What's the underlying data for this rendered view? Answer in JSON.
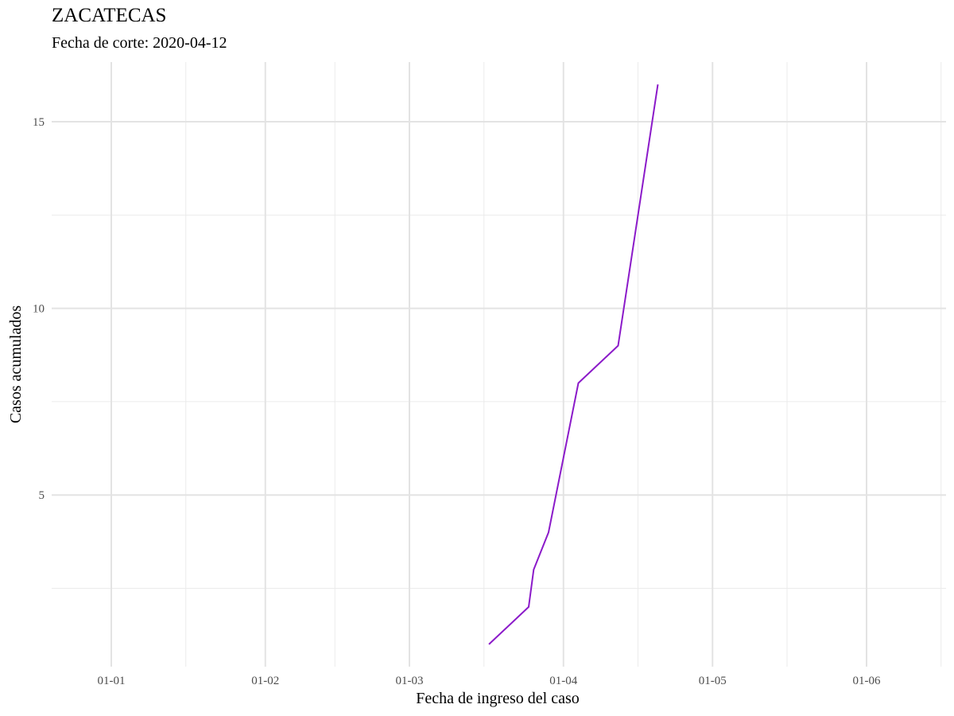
{
  "title": "ZACATECAS",
  "subtitle": "Fecha de corte: 2020-04-12",
  "chart_data": {
    "type": "line",
    "title": "ZACATECAS",
    "subtitle": "Fecha de corte: 2020-04-12",
    "xlabel": "Fecha de ingreso del caso",
    "ylabel": "Casos acumulados",
    "x_type": "date",
    "xlim": [
      "2019-12-20",
      "2020-06-17"
    ],
    "ylim": [
      0.4,
      16.6
    ],
    "x_ticks": [
      {
        "date": "2020-01-01",
        "label": "01-01"
      },
      {
        "date": "2020-02-01",
        "label": "01-02"
      },
      {
        "date": "2020-03-01",
        "label": "01-03"
      },
      {
        "date": "2020-04-01",
        "label": "01-04"
      },
      {
        "date": "2020-05-01",
        "label": "01-05"
      },
      {
        "date": "2020-06-01",
        "label": "01-06"
      }
    ],
    "x_minor_ticks": [
      "2020-01-16",
      "2020-02-15",
      "2020-03-16",
      "2020-04-16",
      "2020-05-16",
      "2020-06-16"
    ],
    "y_ticks": [
      5,
      10,
      15
    ],
    "y_minor_ticks": [
      2.5,
      7.5,
      12.5
    ],
    "grid": true,
    "series": [
      {
        "color": "#8B1AC9",
        "x": [
          "2020-03-17",
          "2020-03-25",
          "2020-03-26",
          "2020-03-29",
          "2020-04-04",
          "2020-04-12",
          "2020-04-20"
        ],
        "y": [
          1,
          2,
          3,
          4,
          8,
          9,
          16
        ]
      }
    ]
  }
}
